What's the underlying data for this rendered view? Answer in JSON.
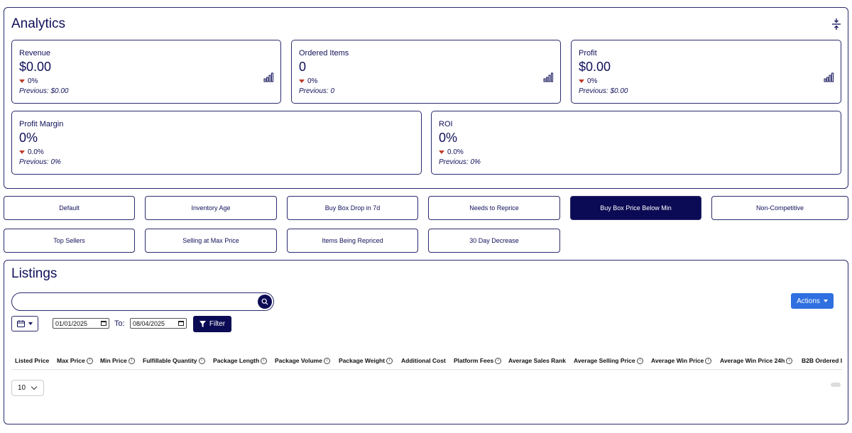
{
  "analytics": {
    "title": "Analytics",
    "cards": [
      {
        "label": "Revenue",
        "value": "$0.00",
        "delta": "0%",
        "previous": "Previous: $0.00"
      },
      {
        "label": "Ordered Items",
        "value": "0",
        "delta": "0%",
        "previous": "Previous: 0"
      },
      {
        "label": "Profit",
        "value": "$0.00",
        "delta": "0%",
        "previous": "Previous: $0.00"
      },
      {
        "label": "Profit Margin",
        "value": "0%",
        "delta": "0.0%",
        "previous": "Previous: 0%"
      },
      {
        "label": "ROI",
        "value": "0%",
        "delta": "0.0%",
        "previous": "Previous: 0%"
      }
    ]
  },
  "filters": [
    "Default",
    "Inventory Age",
    "Buy Box Drop in 7d",
    "Needs to Reprice",
    "Buy Box Price Below Min",
    "Non-Competitive",
    "Top Sellers",
    "Selling at Max Price",
    "Items Being Repriced",
    "30 Day Decrease"
  ],
  "active_filter": "Buy Box Price Below Min",
  "listings": {
    "title": "Listings",
    "search_value": "",
    "actions_label": "Actions",
    "date_from": "01/01/2025",
    "to_label": "To:",
    "date_to": "08/04/2025",
    "filter_label": "Filter",
    "columns": [
      {
        "label": "Listed Price",
        "info": false
      },
      {
        "label": "Max Price",
        "info": true
      },
      {
        "label": "Min Price",
        "info": true
      },
      {
        "label": "Fulfillable Quantity",
        "info": true
      },
      {
        "label": "Package Length",
        "info": true
      },
      {
        "label": "Package Volume",
        "info": true
      },
      {
        "label": "Package Weight",
        "info": true
      },
      {
        "label": "Additional Cost",
        "info": false
      },
      {
        "label": "Platform Fees",
        "info": true
      },
      {
        "label": "Average Sales Rank",
        "info": false
      },
      {
        "label": "Average Selling Price",
        "info": true
      },
      {
        "label": "Average Win Price",
        "info": true
      },
      {
        "label": "Average Win Price 24h",
        "info": true
      },
      {
        "label": "B2B Ordered I",
        "info": false
      }
    ],
    "page_size": "10"
  }
}
